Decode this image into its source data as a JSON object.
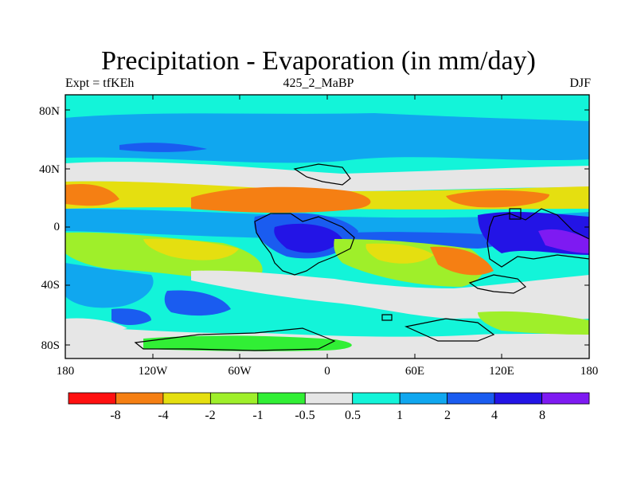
{
  "figure": {
    "title": "Precipitation - Evaporation (in mm/day)",
    "left_label": "Expt = tfKEh",
    "center_label": "425_2_MaBP",
    "right_label": "DJF"
  },
  "axes": {
    "y_ticks": [
      "80N",
      "40N",
      "0",
      "40S",
      "80S"
    ],
    "x_ticks": [
      "180",
      "120W",
      "60W",
      "0",
      "60E",
      "120E",
      "180"
    ]
  },
  "colorbar": {
    "labels": [
      "-8",
      "-4",
      "-2",
      "-1",
      "-0.5",
      "0.5",
      "1",
      "2",
      "4",
      "8"
    ],
    "colors": [
      "#ff1010",
      "#f57f13",
      "#e5df10",
      "#9fef2a",
      "#31ef35",
      "#e6e6e6",
      "#13f4d9",
      "#10a7ef",
      "#1a5cf0",
      "#2314e6",
      "#7e1af2"
    ]
  },
  "palette": {
    "strong_drying": "#f57f13",
    "drying": "#e5df10",
    "moderate": "#9fef2a",
    "near_zero": "#e6e6e6",
    "wet_light": "#13f4d9",
    "wet": "#10a7ef",
    "wet_heavy": "#1a5cf0",
    "wet_extreme": "#2314e6",
    "wet_max": "#7e1af2"
  }
}
